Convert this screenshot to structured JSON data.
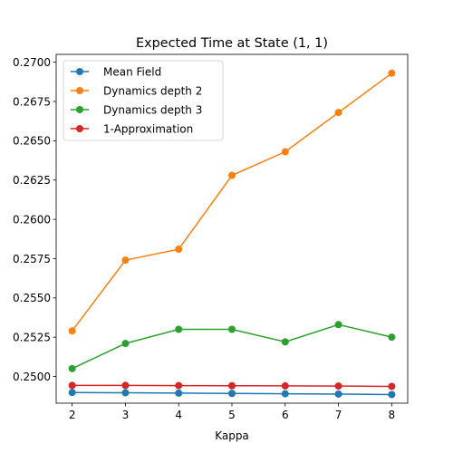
{
  "chart_data": {
    "type": "line",
    "title": "Expected Time at State (1, 1)",
    "xlabel": "Kappa",
    "ylabel": "",
    "x": [
      2,
      3,
      4,
      5,
      6,
      7,
      8
    ],
    "xlim": [
      1.7,
      8.3
    ],
    "ylim": [
      0.2483,
      0.2705
    ],
    "xticks": [
      "2",
      "3",
      "4",
      "5",
      "6",
      "7",
      "8"
    ],
    "yticks": [
      "0.2500",
      "0.2525",
      "0.2550",
      "0.2575",
      "0.2600",
      "0.2625",
      "0.2650",
      "0.2675",
      "0.2700"
    ],
    "grid": false,
    "legend_position": "top-left",
    "series": [
      {
        "name": "Mean Field",
        "color": "#1f77b4",
        "values": [
          0.24898,
          0.24896,
          0.24894,
          0.24892,
          0.2489,
          0.24888,
          0.24885
        ]
      },
      {
        "name": "Dynamics depth 2",
        "color": "#ff7f0e",
        "values": [
          0.2529,
          0.2574,
          0.2581,
          0.2628,
          0.2643,
          0.2668,
          0.2693
        ]
      },
      {
        "name": "Dynamics depth 3",
        "color": "#2ca02c",
        "values": [
          0.2505,
          0.2521,
          0.253,
          0.253,
          0.2522,
          0.2533,
          0.2525
        ]
      },
      {
        "name": "1-Approximation",
        "color": "#d62728",
        "values": [
          0.24943,
          0.24943,
          0.24942,
          0.24941,
          0.2494,
          0.24939,
          0.24937
        ]
      }
    ]
  }
}
